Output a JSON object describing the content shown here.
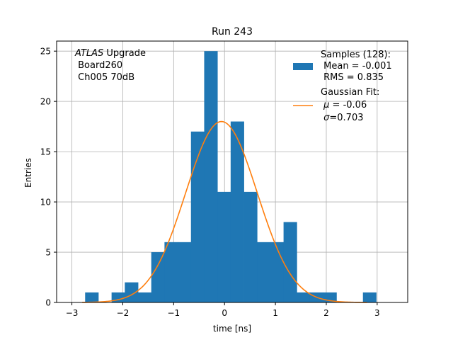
{
  "chart_data": {
    "type": "bar",
    "title": "Run 243",
    "xlabel": "time [ns]",
    "ylabel": "Entries",
    "xlim": [
      -3.3,
      3.6
    ],
    "ylim": [
      0,
      26
    ],
    "xticks": [
      -3,
      -2,
      -1,
      0,
      1,
      2,
      3
    ],
    "yticks": [
      0,
      5,
      10,
      15,
      20,
      25
    ],
    "grid": true,
    "bar_color": "#1f77b4",
    "fit_color": "#ff7f0e",
    "annotation": {
      "prefix": "ATLAS",
      "prefix_rest": " Upgrade",
      "line2": " Board260",
      "line3": " Ch005 70dB"
    },
    "legend": {
      "position": "top-right",
      "samples_title": "Samples (128):",
      "samples_mean": " Mean = -0.001",
      "samples_rms": " RMS = 0.835",
      "fit_title": "Gaussian Fit:",
      "fit_mu_symbol": "μ",
      "fit_mu_rest": " = -0.06",
      "fit_sigma_symbol": "σ",
      "fit_sigma_rest": "=0.703"
    },
    "histogram": {
      "bin_edges": [
        -2.74,
        -2.48,
        -2.22,
        -1.96,
        -1.7,
        -1.44,
        -1.18,
        -0.92,
        -0.66,
        -0.4,
        -0.14,
        0.12,
        0.38,
        0.64,
        0.9,
        1.16,
        1.42,
        1.68,
        1.94,
        2.2,
        2.46,
        2.72,
        2.98
      ],
      "counts": [
        1,
        0,
        1,
        2,
        1,
        5,
        6,
        6,
        17,
        25,
        11,
        18,
        11,
        6,
        6,
        8,
        1,
        1,
        1,
        0,
        0,
        1
      ]
    },
    "gaussian_fit": {
      "mu": -0.06,
      "sigma": 0.703,
      "amplitude": 18,
      "x_range": [
        -2.8,
        2.8
      ]
    }
  }
}
